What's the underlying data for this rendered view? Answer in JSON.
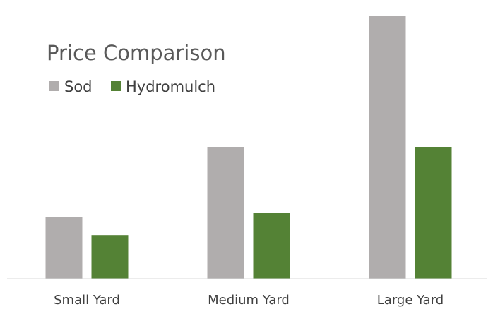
{
  "chart_data": {
    "type": "bar",
    "title": "Price Comparison",
    "xlabel": "",
    "ylabel": "",
    "categories": [
      "Small Yard",
      "Medium Yard",
      "Large Yard"
    ],
    "series": [
      {
        "name": "Sod",
        "values": [
          23.4,
          50,
          100
        ],
        "color": "#b0adad"
      },
      {
        "name": "Hydromulch",
        "values": [
          16.6,
          25,
          50
        ],
        "color": "#548235"
      }
    ],
    "ylim": [
      0,
      100
    ],
    "grid": false,
    "legend": "top-left",
    "axis_color": "#d9d9d9"
  }
}
